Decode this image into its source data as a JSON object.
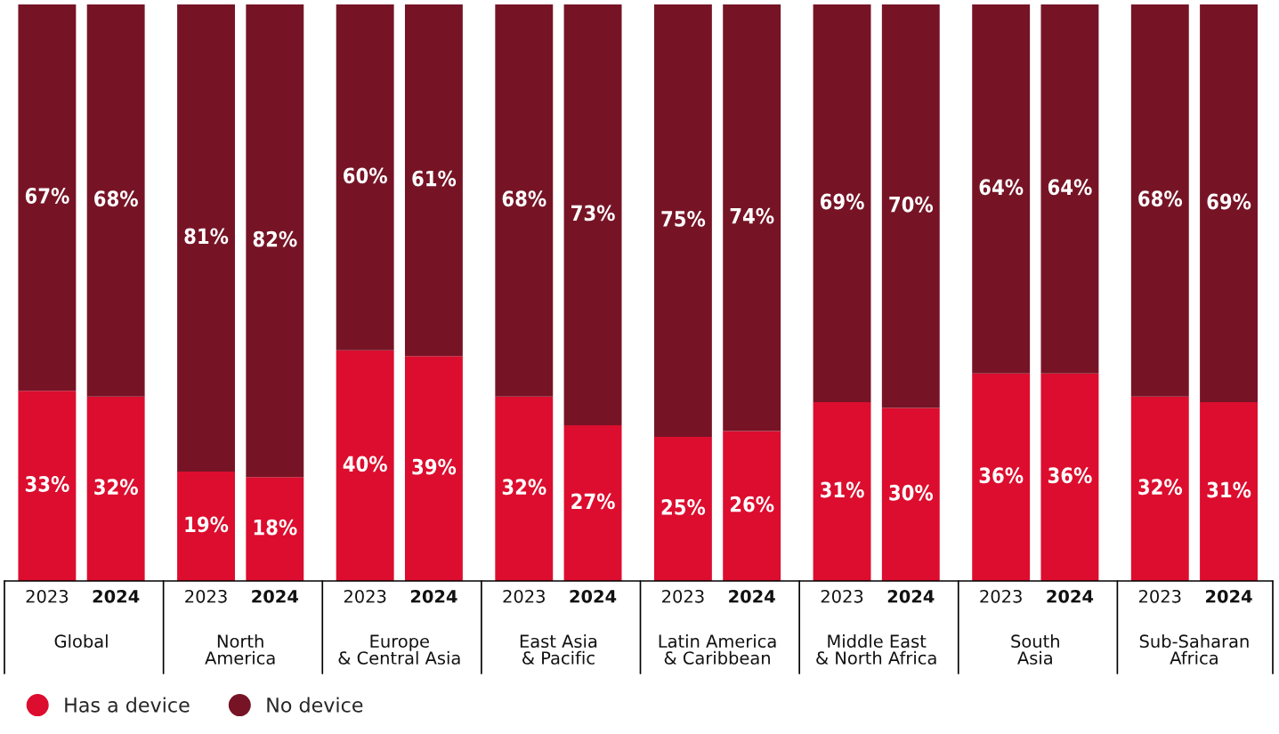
{
  "chart_data": {
    "type": "bar",
    "stacked": true,
    "legend": "bottom left",
    "marker": "circle",
    "categories": [
      "2023",
      "2024",
      "2023",
      "2024",
      "2023",
      "2024",
      "2023",
      "2024",
      "2023",
      "2024",
      "2023",
      "2024",
      "2023",
      "2024",
      "2023",
      "2024"
    ],
    "annotations": [
      "Global",
      "North\nAmerica",
      "Europe\n& Central Asia",
      "East Asia\n& Pacific",
      "Latin America\n& Caribbean",
      "Middle East\n& North Africa",
      "South\nAsia",
      "Sub-Saharan\nAfrica"
    ],
    "series": [
      {
        "name": "Has a device",
        "color": "#dc0d2e",
        "values": [
          33,
          32,
          19,
          18,
          40,
          39,
          32,
          27,
          25,
          26,
          31,
          30,
          36,
          36,
          32,
          31
        ],
        "value_labels": [
          "33%",
          "32%",
          "19%",
          "18%",
          "40%",
          "39%",
          "32%",
          "27%",
          "25%",
          "26%",
          "31%",
          "30%",
          "36%",
          "36%",
          "32%",
          "31%"
        ]
      },
      {
        "name": "No device",
        "color": "#761426",
        "values": [
          67,
          68,
          81,
          82,
          60,
          61,
          68,
          73,
          75,
          74,
          69,
          70,
          64,
          64,
          68,
          69
        ],
        "value_labels": [
          "67%",
          "68%",
          "81%",
          "82%",
          "60%",
          "61%",
          "68%",
          "73%",
          "75%",
          "74%",
          "69%",
          "70%",
          "64%",
          "64%",
          "68%",
          "69%"
        ]
      }
    ]
  }
}
